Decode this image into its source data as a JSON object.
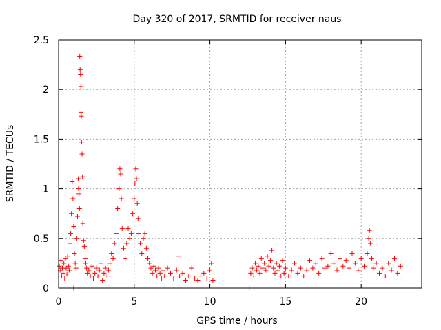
{
  "chart_data": {
    "type": "scatter",
    "title": "Day 320 of 2017, SRMTID for receiver naus",
    "xlabel": "GPS time / hours",
    "ylabel": "SRMTID / TECUs",
    "xlim": [
      0,
      24
    ],
    "ylim": [
      0,
      2.5
    ],
    "grid": true,
    "marker": "+",
    "color": "#ff0000",
    "x_ticks": [
      "0",
      "5",
      "10",
      "15",
      "20"
    ],
    "x_tick_values": [
      0,
      5,
      10,
      15,
      20
    ],
    "y_ticks": [
      "0",
      "0.5",
      "1",
      "1.5",
      "2",
      "2.5"
    ],
    "y_tick_values": [
      0,
      0.5,
      1,
      1.5,
      2,
      2.5
    ],
    "series": [
      {
        "name": "SRMTID",
        "points": [
          [
            0.05,
            0.22
          ],
          [
            0.1,
            0.18
          ],
          [
            0.15,
            0.28
          ],
          [
            0.2,
            0.12
          ],
          [
            0.25,
            0.2
          ],
          [
            0.3,
            0.15
          ],
          [
            0.35,
            0.25
          ],
          [
            0.4,
            0.1
          ],
          [
            0.45,
            0.3
          ],
          [
            0.5,
            0.2
          ],
          [
            0.55,
            0.14
          ],
          [
            0.6,
            0.32
          ],
          [
            0.65,
            0.22
          ],
          [
            0.7,
            0.18
          ],
          [
            0.75,
            0.45
          ],
          [
            0.8,
            0.55
          ],
          [
            0.85,
            0.75
          ],
          [
            0.9,
            1.07
          ],
          [
            0.95,
            0.9
          ],
          [
            1.0,
            0.62
          ],
          [
            1.0,
            0.0
          ],
          [
            1.05,
            0.35
          ],
          [
            1.1,
            0.25
          ],
          [
            1.15,
            0.2
          ],
          [
            1.2,
            0.5
          ],
          [
            1.25,
            0.72
          ],
          [
            1.3,
            1.1
          ],
          [
            1.32,
            1.0
          ],
          [
            1.35,
            0.95
          ],
          [
            1.38,
            0.8
          ],
          [
            1.4,
            2.33
          ],
          [
            1.42,
            2.2
          ],
          [
            1.45,
            2.15
          ],
          [
            1.47,
            2.03
          ],
          [
            1.48,
            1.77
          ],
          [
            1.5,
            1.73
          ],
          [
            1.52,
            1.47
          ],
          [
            1.55,
            1.35
          ],
          [
            1.58,
            1.12
          ],
          [
            1.6,
            0.65
          ],
          [
            1.65,
            0.48
          ],
          [
            1.7,
            0.42
          ],
          [
            1.75,
            0.3
          ],
          [
            1.8,
            0.25
          ],
          [
            1.85,
            0.2
          ],
          [
            1.9,
            0.15
          ],
          [
            2.0,
            0.18
          ],
          [
            2.1,
            0.12
          ],
          [
            2.2,
            0.22
          ],
          [
            2.3,
            0.1
          ],
          [
            2.4,
            0.15
          ],
          [
            2.5,
            0.2
          ],
          [
            2.6,
            0.12
          ],
          [
            2.7,
            0.18
          ],
          [
            2.8,
            0.25
          ],
          [
            2.9,
            0.08
          ],
          [
            3.0,
            0.15
          ],
          [
            3.1,
            0.2
          ],
          [
            3.2,
            0.12
          ],
          [
            3.3,
            0.18
          ],
          [
            3.4,
            0.25
          ],
          [
            3.5,
            0.35
          ],
          [
            3.6,
            0.3
          ],
          [
            3.7,
            0.45
          ],
          [
            3.8,
            0.55
          ],
          [
            3.9,
            0.8
          ],
          [
            4.0,
            1.0
          ],
          [
            4.05,
            1.2
          ],
          [
            4.1,
            1.15
          ],
          [
            4.15,
            0.9
          ],
          [
            4.2,
            0.6
          ],
          [
            4.3,
            0.4
          ],
          [
            4.4,
            0.3
          ],
          [
            4.5,
            0.45
          ],
          [
            4.6,
            0.6
          ],
          [
            4.7,
            0.5
          ],
          [
            4.8,
            0.55
          ],
          [
            4.9,
            0.75
          ],
          [
            5.0,
            0.9
          ],
          [
            5.05,
            1.05
          ],
          [
            5.1,
            1.2
          ],
          [
            5.15,
            1.1
          ],
          [
            5.2,
            0.85
          ],
          [
            5.25,
            0.7
          ],
          [
            5.3,
            0.55
          ],
          [
            5.4,
            0.45
          ],
          [
            5.5,
            0.35
          ],
          [
            5.6,
            0.5
          ],
          [
            5.7,
            0.55
          ],
          [
            5.8,
            0.4
          ],
          [
            5.9,
            0.3
          ],
          [
            6.0,
            0.25
          ],
          [
            6.1,
            0.2
          ],
          [
            6.2,
            0.15
          ],
          [
            6.3,
            0.22
          ],
          [
            6.4,
            0.18
          ],
          [
            6.5,
            0.12
          ],
          [
            6.6,
            0.2
          ],
          [
            6.7,
            0.15
          ],
          [
            6.8,
            0.1
          ],
          [
            6.9,
            0.18
          ],
          [
            7.0,
            0.12
          ],
          [
            7.2,
            0.2
          ],
          [
            7.4,
            0.15
          ],
          [
            7.6,
            0.1
          ],
          [
            7.8,
            0.18
          ],
          [
            7.9,
            0.32
          ],
          [
            8.0,
            0.12
          ],
          [
            8.2,
            0.15
          ],
          [
            8.4,
            0.08
          ],
          [
            8.6,
            0.12
          ],
          [
            8.8,
            0.2
          ],
          [
            9.0,
            0.1
          ],
          [
            9.2,
            0.08
          ],
          [
            9.4,
            0.12
          ],
          [
            9.6,
            0.15
          ],
          [
            9.8,
            0.1
          ],
          [
            10.0,
            0.18
          ],
          [
            10.1,
            0.25
          ],
          [
            10.2,
            0.08
          ],
          [
            12.6,
            0.0
          ],
          [
            12.7,
            0.15
          ],
          [
            12.8,
            0.2
          ],
          [
            12.9,
            0.12
          ],
          [
            13.0,
            0.25
          ],
          [
            13.1,
            0.18
          ],
          [
            13.2,
            0.22
          ],
          [
            13.3,
            0.15
          ],
          [
            13.4,
            0.3
          ],
          [
            13.5,
            0.2
          ],
          [
            13.6,
            0.25
          ],
          [
            13.7,
            0.18
          ],
          [
            13.8,
            0.32
          ],
          [
            13.9,
            0.22
          ],
          [
            14.0,
            0.28
          ],
          [
            14.1,
            0.38
          ],
          [
            14.2,
            0.2
          ],
          [
            14.3,
            0.15
          ],
          [
            14.4,
            0.25
          ],
          [
            14.5,
            0.18
          ],
          [
            14.6,
            0.22
          ],
          [
            14.7,
            0.12
          ],
          [
            14.8,
            0.28
          ],
          [
            14.9,
            0.15
          ],
          [
            15.0,
            0.2
          ],
          [
            15.2,
            0.12
          ],
          [
            15.4,
            0.18
          ],
          [
            15.6,
            0.25
          ],
          [
            15.8,
            0.15
          ],
          [
            16.0,
            0.2
          ],
          [
            16.2,
            0.12
          ],
          [
            16.4,
            0.18
          ],
          [
            16.6,
            0.28
          ],
          [
            16.8,
            0.2
          ],
          [
            17.0,
            0.25
          ],
          [
            17.2,
            0.15
          ],
          [
            17.4,
            0.3
          ],
          [
            17.6,
            0.2
          ],
          [
            17.8,
            0.22
          ],
          [
            18.0,
            0.35
          ],
          [
            18.2,
            0.25
          ],
          [
            18.4,
            0.18
          ],
          [
            18.6,
            0.3
          ],
          [
            18.8,
            0.22
          ],
          [
            19.0,
            0.28
          ],
          [
            19.2,
            0.2
          ],
          [
            19.4,
            0.35
          ],
          [
            19.6,
            0.25
          ],
          [
            19.8,
            0.18
          ],
          [
            20.0,
            0.3
          ],
          [
            20.2,
            0.22
          ],
          [
            20.4,
            0.35
          ],
          [
            20.5,
            0.5
          ],
          [
            20.55,
            0.58
          ],
          [
            20.6,
            0.45
          ],
          [
            20.7,
            0.3
          ],
          [
            20.8,
            0.2
          ],
          [
            21.0,
            0.25
          ],
          [
            21.2,
            0.15
          ],
          [
            21.4,
            0.2
          ],
          [
            21.6,
            0.12
          ],
          [
            21.8,
            0.25
          ],
          [
            22.0,
            0.18
          ],
          [
            22.2,
            0.3
          ],
          [
            22.4,
            0.15
          ],
          [
            22.6,
            0.22
          ],
          [
            22.7,
            0.1
          ]
        ]
      }
    ]
  }
}
